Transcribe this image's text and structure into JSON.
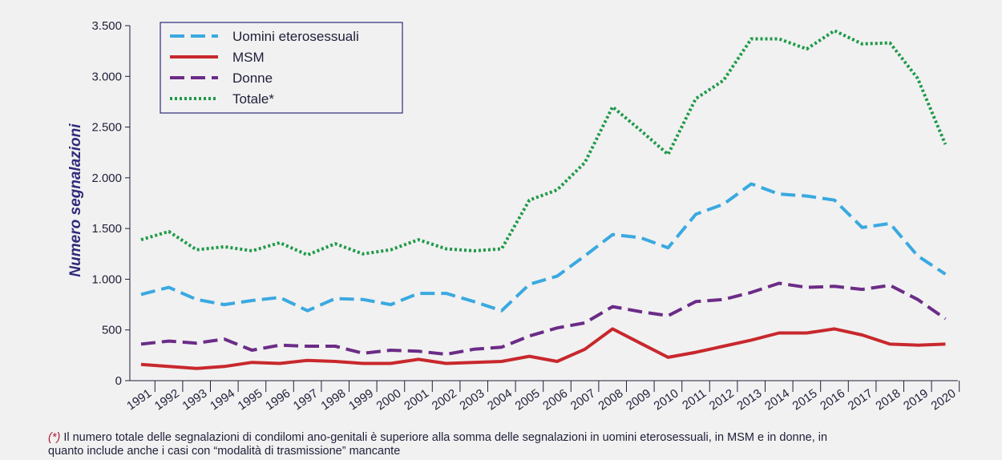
{
  "chart_data": {
    "type": "line",
    "y_label": "Numero segnalazioni",
    "footnote_marker": "(*)",
    "footnote": [
      "Il numero totale delle segnalazioni di condilomi ano-genitali è superiore alla somma delle segnalazioni in uomini eterosessuali, in MSM e in donne, in",
      "quanto include anche i casi con “modalità di trasmissione” mancante"
    ],
    "categories": [
      "1991",
      "1992",
      "1993",
      "1994",
      "1995",
      "1996",
      "1997",
      "1998",
      "1999",
      "2000",
      "2001",
      "2002",
      "2003",
      "2004",
      "2005",
      "2006",
      "2007",
      "2008",
      "2009",
      "2010",
      "2011",
      "2012",
      "2013",
      "2014",
      "2015",
      "2016",
      "2017",
      "2018",
      "2019",
      "2020"
    ],
    "series": [
      {
        "name": "Uomini eterosessuali",
        "color": "#3aa9e0",
        "dash": "dashed",
        "values": [
          850,
          920,
          800,
          750,
          790,
          820,
          690,
          810,
          800,
          750,
          860,
          860,
          780,
          690,
          950,
          1030,
          1230,
          1440,
          1410,
          1310,
          1640,
          1740,
          1940,
          1840,
          1820,
          1780,
          1510,
          1550,
          1230,
          1050
        ]
      },
      {
        "name": "MSM",
        "color": "#c8282d",
        "dash": "solid",
        "values": [
          160,
          140,
          120,
          140,
          180,
          170,
          200,
          190,
          170,
          170,
          210,
          170,
          180,
          190,
          240,
          190,
          310,
          510,
          370,
          230,
          280,
          340,
          400,
          470,
          470,
          510,
          450,
          360,
          350,
          360
        ]
      },
      {
        "name": "Donne",
        "color": "#6b2c87",
        "dash": "dashed",
        "values": [
          360,
          390,
          370,
          410,
          300,
          350,
          340,
          340,
          270,
          300,
          290,
          260,
          310,
          330,
          440,
          520,
          570,
          730,
          680,
          640,
          780,
          800,
          870,
          960,
          920,
          930,
          900,
          940,
          800,
          610
        ]
      },
      {
        "name": "Totale*",
        "color": "#1e9a48",
        "dash": "dotted",
        "values": [
          1390,
          1470,
          1290,
          1320,
          1280,
          1360,
          1240,
          1350,
          1250,
          1290,
          1390,
          1300,
          1280,
          1300,
          1780,
          1880,
          2150,
          2700,
          2470,
          2230,
          2780,
          2960,
          3370,
          3370,
          3270,
          3450,
          3320,
          3330,
          2980,
          2330
        ]
      }
    ],
    "ylim": [
      0,
      3500
    ],
    "yticks": [
      0,
      500,
      {
        "value": 1000,
        "label": "1.000"
      },
      {
        "value": 1500,
        "label": "1.500"
      },
      {
        "value": 2000,
        "label": "2.000"
      },
      {
        "value": 2500,
        "label": "2.500"
      },
      {
        "value": 3000,
        "label": "3.000"
      },
      {
        "value": 3500,
        "label": "3.500"
      }
    ],
    "legend": "upper left"
  }
}
